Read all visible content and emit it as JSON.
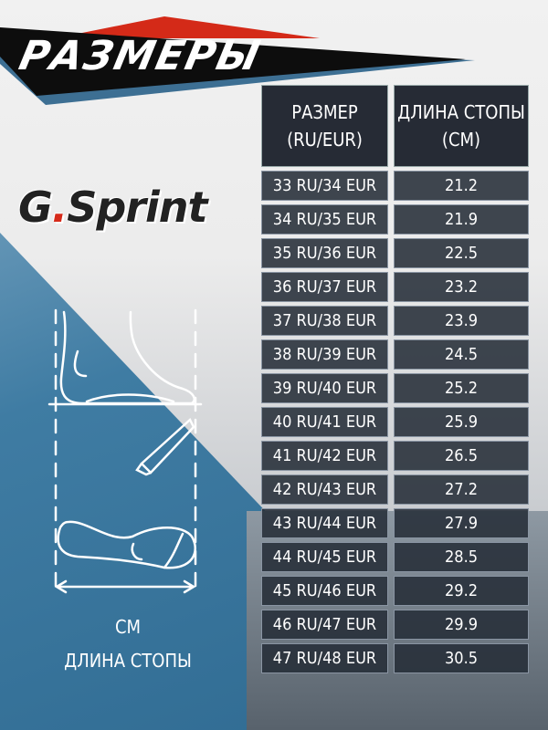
{
  "title": "РАЗМЕРЫ",
  "brand": {
    "name_part1": "G",
    "dot": ".",
    "name_part2": "Sprint",
    "accent": "#d62a1a"
  },
  "illustration": {
    "unit": "СМ",
    "label": "ДЛИНА СТОПЫ"
  },
  "table": {
    "headers": [
      [
        "РАЗМЕР",
        "(RU/EUR)"
      ],
      [
        "ДЛИНА СТОПЫ",
        "(СМ)"
      ]
    ],
    "rows": [
      [
        "33 RU/34 EUR",
        "21.2"
      ],
      [
        "34 RU/35 EUR",
        "21.9"
      ],
      [
        "35 RU/36 EUR",
        "22.5"
      ],
      [
        "36 RU/37 EUR",
        "23.2"
      ],
      [
        "37 RU/38 EUR",
        "23.9"
      ],
      [
        "38 RU/39 EUR",
        "24.5"
      ],
      [
        "39 RU/40 EUR",
        "25.2"
      ],
      [
        "40 RU/41 EUR",
        "25.9"
      ],
      [
        "41 RU/42 EUR",
        "26.5"
      ],
      [
        "42 RU/43 EUR",
        "27.2"
      ],
      [
        "43 RU/44 EUR",
        "27.9"
      ],
      [
        "44 RU/45 EUR",
        "28.5"
      ],
      [
        "45 RU/46 EUR",
        "29.2"
      ],
      [
        "46 RU/47 EUR",
        "29.9"
      ],
      [
        "47 RU/48 EUR",
        "30.5"
      ]
    ]
  }
}
